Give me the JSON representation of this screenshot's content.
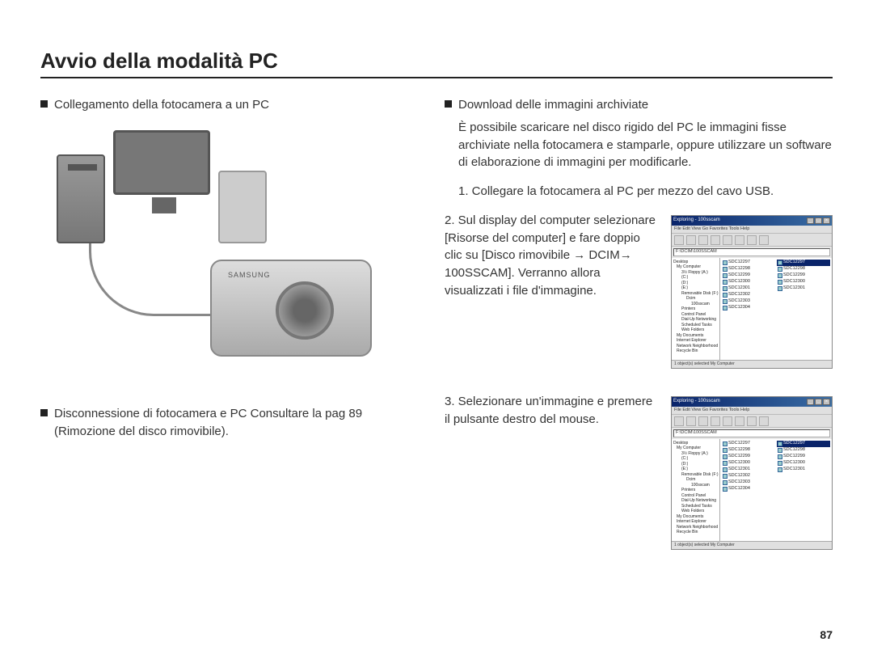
{
  "page": {
    "title": "Avvio della modalità PC",
    "number": "87"
  },
  "left": {
    "heading1": "Collegamento della fotocamera a un PC",
    "camera_brand": "SAMSUNG",
    "heading2": "Disconnessione di fotocamera e PC Consultare la pag 89 (Rimozione del disco rimovibile)."
  },
  "right": {
    "heading": "Download delle immagini archiviate",
    "desc": "È possibile scaricare nel disco rigido del PC le immagini fisse archiviate nella fotocamera e stamparle, oppure utilizzare un software di elaborazione di immagini per modificarle.",
    "step1": "1. Collegare la fotocamera al PC per mezzo del cavo USB.",
    "step2": "2. Sul display del computer selezionare [Risorse del computer] e fare doppio clic su [Disco rimovibile → DCIM→ 100SSCAM]. Verranno allora visualizzati i file d'immagine.",
    "step3": "3. Selezionare un'immagine e premere il pulsante destro del mouse."
  },
  "explorer": {
    "title": "Exploring - 100sscam",
    "menu": "File  Edit  View  Go  Favorites  Tools  Help",
    "address": "F:\\DCIM\\100SSCAM",
    "tree": {
      "root": "Desktop",
      "mycomp": "My Computer",
      "floppy": "3½ Floppy (A:)",
      "c": "(C:)",
      "d": "(D:)",
      "e": "(E:)",
      "rem": "Removable Disk (F:)",
      "dcim": "Dcim",
      "folder": "100sscam",
      "printers": "Printers",
      "ctrl": "Control Panel",
      "dialup": "Dial-Up Networking",
      "sched": "Scheduled Tasks",
      "webf": "Web Folders",
      "mydocs": "My Documents",
      "ie": "Internet Explorer",
      "nethood": "Network Neighborhood",
      "recycle": "Recycle Bin"
    },
    "files_a": [
      "SDC12297",
      "SDC12298",
      "SDC12299",
      "SDC12300",
      "SDC12301",
      "SDC12302",
      "SDC12303",
      "SDC12304"
    ],
    "files_b": [
      "SDC12297",
      "SDC12298",
      "SDC12299",
      "SDC12300",
      "SDC12301"
    ],
    "status": "1 object(s) selected   My Computer"
  }
}
